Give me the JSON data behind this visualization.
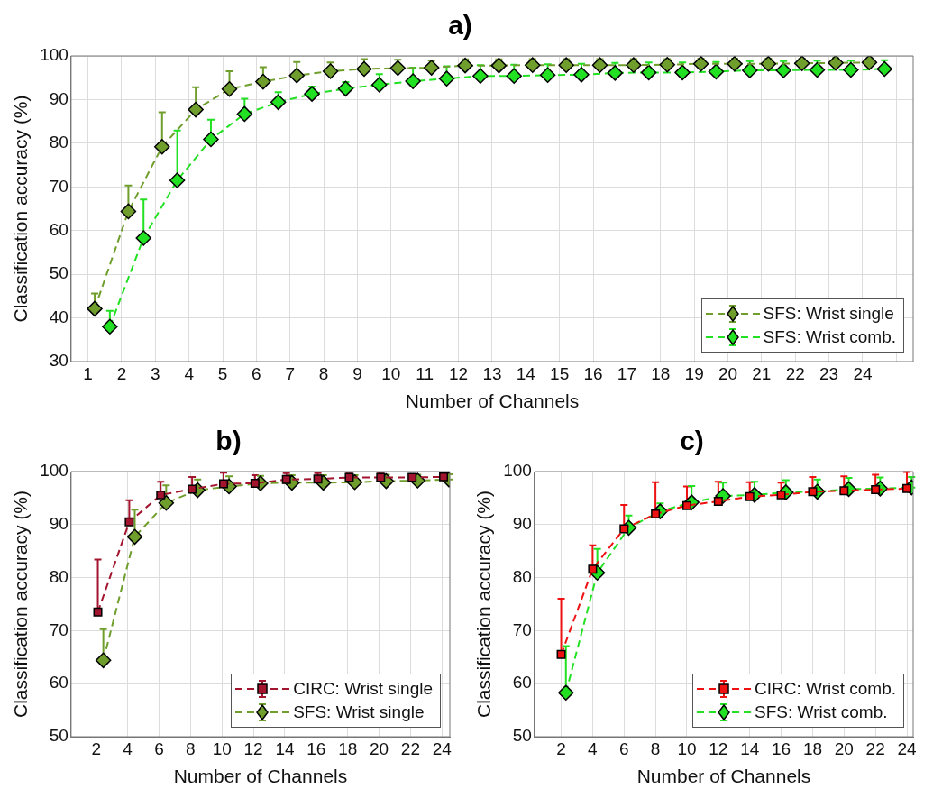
{
  "chart_data": [
    {
      "type": "line",
      "title": "a)",
      "xlabel": "Number of Channels",
      "ylabel": "Classification accuracy (%)",
      "xlim": [
        0.5,
        25.5
      ],
      "xticks": [
        1,
        2,
        3,
        4,
        5,
        6,
        7,
        8,
        9,
        10,
        11,
        12,
        13,
        14,
        15,
        16,
        17,
        18,
        19,
        20,
        21,
        22,
        23,
        24,
        {
          "value": 25,
          "label": null
        }
      ],
      "ylim": [
        30,
        100
      ],
      "yticks": [
        30,
        40,
        50,
        60,
        70,
        80,
        90,
        100
      ],
      "grid": true,
      "legend": "bottom right",
      "marker": "diamond",
      "line_style": "dashed",
      "series": [
        {
          "name": "SFS: Wrist single",
          "color": "#6f9e2c",
          "x": [
            1.2,
            2.2,
            3.2,
            4.2,
            5.2,
            6.2,
            7.2,
            8.2,
            9.2,
            10.2,
            11.2,
            12.2,
            13.2,
            14.2,
            15.2,
            16.2,
            17.2,
            18.2,
            19.2,
            20.2,
            21.2,
            22.2,
            23.2,
            24.2
          ],
          "values": [
            42.1,
            64.4,
            79.2,
            87.7,
            92.4,
            94.1,
            95.5,
            96.5,
            97.0,
            97.2,
            97.3,
            97.8,
            97.8,
            97.9,
            97.9,
            97.9,
            97.9,
            98.0,
            98.2,
            98.2,
            98.2,
            98.3,
            98.4,
            98.5
          ],
          "errors": [
            [
              42.1,
              45.6
            ],
            [
              64.4,
              70.3
            ],
            [
              79.2,
              87.1
            ],
            [
              87.7,
              92.8
            ],
            [
              92.4,
              96.5
            ],
            [
              94.1,
              97.4
            ],
            [
              95.5,
              98.6
            ],
            [
              96.5,
              98.5
            ],
            [
              97.0,
              99.3
            ],
            [
              97.2,
              99.1
            ],
            [
              97.3,
              98.9
            ],
            [
              97.8,
              99.2
            ],
            [
              97.8,
              99.2
            ],
            [
              97.9,
              99.3
            ],
            [
              97.9,
              99.3
            ],
            [
              97.9,
              99.3
            ],
            [
              97.9,
              99.3
            ],
            [
              98.0,
              99.3
            ],
            [
              98.2,
              99.4
            ],
            [
              98.2,
              99.4
            ],
            [
              98.2,
              99.4
            ],
            [
              98.3,
              99.4
            ],
            [
              98.4,
              99.5
            ],
            [
              98.5,
              99.5
            ]
          ]
        },
        {
          "name": "SFS: Wrist comb.",
          "color": "#22e022",
          "x": [
            1.65,
            2.65,
            3.65,
            4.65,
            5.65,
            6.65,
            7.65,
            8.65,
            9.65,
            10.65,
            11.65,
            12.65,
            13.65,
            14.65,
            15.65,
            16.65,
            17.65,
            18.65,
            19.65,
            20.65,
            21.65,
            22.65,
            23.65,
            24.65
          ],
          "values": [
            38.0,
            58.3,
            71.5,
            80.9,
            86.7,
            89.4,
            91.3,
            92.5,
            93.4,
            94.2,
            94.8,
            95.4,
            95.4,
            95.6,
            95.7,
            96.1,
            96.2,
            96.2,
            96.4,
            96.7,
            96.7,
            96.8,
            96.8,
            97.0
          ],
          "errors": [
            [
              38.0,
              41.6
            ],
            [
              58.3,
              67.1
            ],
            [
              71.5,
              82.9
            ],
            [
              80.9,
              85.4
            ],
            [
              86.7,
              90.2
            ],
            [
              89.4,
              91.7
            ],
            [
              91.3,
              93.0
            ],
            [
              92.5,
              94.0
            ],
            [
              93.4,
              95.8
            ],
            [
              94.2,
              97.3
            ],
            [
              94.8,
              97.6
            ],
            [
              95.4,
              97.9
            ],
            [
              95.4,
              98.0
            ],
            [
              95.6,
              98.1
            ],
            [
              95.7,
              98.2
            ],
            [
              96.1,
              98.4
            ],
            [
              96.2,
              98.5
            ],
            [
              96.2,
              98.5
            ],
            [
              96.4,
              98.6
            ],
            [
              96.7,
              98.8
            ],
            [
              96.7,
              98.8
            ],
            [
              96.8,
              98.9
            ],
            [
              96.8,
              98.9
            ],
            [
              97.0,
              99.0
            ]
          ]
        }
      ]
    },
    {
      "type": "line",
      "title": "b)",
      "xlabel": "Number of Channels",
      "ylabel": "Classification accuracy (%)",
      "xlim": [
        0.4,
        24.5
      ],
      "xticks": [
        2,
        4,
        6,
        8,
        10,
        12,
        14,
        16,
        18,
        20,
        22,
        24
      ],
      "ylim": [
        50,
        100
      ],
      "yticks": [
        50,
        60,
        70,
        80,
        90,
        100
      ],
      "grid": true,
      "legend": "bottom right",
      "line_style": "dashed",
      "series": [
        {
          "name": "CIRC: Wrist single",
          "color": "#a3142e",
          "marker": "square",
          "x": [
            2.1,
            4.1,
            6.1,
            8.1,
            10.1,
            12.1,
            14.1,
            16.1,
            18.1,
            20.1,
            22.1,
            24.1
          ],
          "values": [
            73.5,
            90.5,
            95.6,
            96.7,
            97.7,
            97.8,
            98.5,
            98.6,
            98.9,
            98.9,
            98.9,
            99.0
          ],
          "errors": [
            [
              73.5,
              83.4
            ],
            [
              90.5,
              94.6
            ],
            [
              95.6,
              98.1
            ],
            [
              96.7,
              99.0
            ],
            [
              97.7,
              99.8
            ],
            [
              97.8,
              99.3
            ],
            [
              98.5,
              99.7
            ],
            [
              98.6,
              99.7
            ],
            [
              98.9,
              99.6
            ],
            [
              98.9,
              99.6
            ],
            [
              98.9,
              99.5
            ],
            [
              99.0,
              99.6
            ]
          ]
        },
        {
          "name": "SFS: Wrist single",
          "color": "#6f9e2c",
          "marker": "diamond",
          "x": [
            2.45,
            4.45,
            6.45,
            8.45,
            10.45,
            12.45,
            14.45,
            16.45,
            18.45,
            20.45,
            22.45,
            24.45
          ],
          "values": [
            64.4,
            87.7,
            94.1,
            96.5,
            97.2,
            97.8,
            97.9,
            97.9,
            98.0,
            98.2,
            98.3,
            98.5
          ],
          "errors": [
            [
              64.4,
              70.3
            ],
            [
              87.7,
              92.8
            ],
            [
              94.1,
              97.4
            ],
            [
              96.5,
              98.5
            ],
            [
              97.2,
              99.1
            ],
            [
              97.8,
              99.2
            ],
            [
              97.9,
              99.3
            ],
            [
              97.9,
              99.3
            ],
            [
              98.0,
              99.3
            ],
            [
              98.2,
              99.4
            ],
            [
              98.3,
              99.4
            ],
            [
              98.5,
              99.5
            ]
          ]
        }
      ]
    },
    {
      "type": "line",
      "title": "c)",
      "xlabel": "Number of Channels",
      "ylabel": "Classification accuracy (%)",
      "xlim": [
        0.3,
        24.4
      ],
      "xticks": [
        2,
        4,
        6,
        8,
        10,
        12,
        14,
        16,
        18,
        20,
        22,
        24
      ],
      "ylim": [
        50,
        100
      ],
      "yticks": [
        50,
        60,
        70,
        80,
        90,
        100
      ],
      "grid": true,
      "legend": "bottom right",
      "line_style": "dashed",
      "series": [
        {
          "name": "CIRC: Wrist comb.",
          "color": "#ee1111",
          "marker": "square",
          "x": [
            2,
            4,
            6,
            8,
            10,
            12,
            14,
            16,
            18,
            20,
            22,
            24
          ],
          "values": [
            65.5,
            81.6,
            89.2,
            92.0,
            93.6,
            94.4,
            95.3,
            95.6,
            96.2,
            96.4,
            96.6,
            96.8
          ],
          "errors": [
            [
              65.5,
              76.0
            ],
            [
              81.6,
              86.1
            ],
            [
              89.2,
              93.7
            ],
            [
              92.0,
              98.0
            ],
            [
              93.6,
              97.2
            ],
            [
              94.4,
              98.1
            ],
            [
              95.3,
              98.0
            ],
            [
              95.6,
              97.9
            ],
            [
              96.2,
              99.0
            ],
            [
              96.4,
              99.1
            ],
            [
              96.6,
              99.4
            ],
            [
              96.8,
              99.9
            ]
          ]
        },
        {
          "name": "SFS: Wrist comb.",
          "color": "#22e022",
          "marker": "diamond",
          "x": [
            2.3,
            4.3,
            6.3,
            8.3,
            10.3,
            12.3,
            14.3,
            16.3,
            18.3,
            20.3,
            22.3,
            24.3
          ],
          "values": [
            58.3,
            80.9,
            89.4,
            92.5,
            94.2,
            95.4,
            95.6,
            96.1,
            96.2,
            96.7,
            96.8,
            97.0
          ],
          "errors": [
            [
              58.3,
              67.1
            ],
            [
              80.9,
              85.4
            ],
            [
              89.4,
              91.7
            ],
            [
              92.5,
              94.0
            ],
            [
              94.2,
              97.3
            ],
            [
              95.4,
              97.9
            ],
            [
              95.6,
              98.1
            ],
            [
              96.1,
              98.4
            ],
            [
              96.2,
              98.5
            ],
            [
              96.7,
              98.8
            ],
            [
              96.8,
              98.9
            ],
            [
              97.0,
              99.0
            ]
          ]
        }
      ]
    }
  ]
}
